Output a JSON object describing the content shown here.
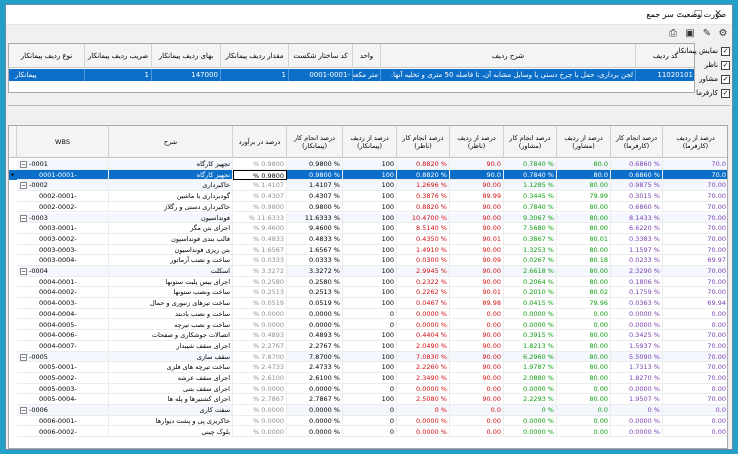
{
  "window": {
    "title": "صورت وضعیت سر جمع"
  },
  "side_options": [
    {
      "label": "نمایش پیمانکار",
      "checked": true
    },
    {
      "label": "ناظر",
      "checked": true
    },
    {
      "label": "مشاور",
      "checked": true
    },
    {
      "label": "کارفرما",
      "checked": true
    }
  ],
  "top_table": {
    "headers": [
      "کد ردیف",
      "شرح ردیف",
      "واحد",
      "کد ساختار شکست",
      "مقدار ردیف پیمانکار",
      "بهای ردیف پیمانکار",
      "ضریب ردیف پیمانکار",
      "نوع ردیف پیمانکار"
    ],
    "row": [
      "11020101",
      "لجن برداری، حمل با چرخ دستی یا وسایل مشابه آن، تا فاصله 50 متری و تخلیه آنها.",
      "متر مکعب",
      "0001-0001-",
      "1",
      "147000",
      "1",
      "پیمانکار"
    ]
  },
  "grid": {
    "headers": [
      "WBS",
      "شرح",
      "درصد در برآورد",
      "درصد انجام کار (پیمانکار)",
      "درصد از ردیف (پیمانکار)",
      "درصد انجام کار (ناظر)",
      "درصد از ردیف (ناظر)",
      "درصد انجام کار (مشاور)",
      "درصد از ردیف (مشاور)",
      "درصد انجام کار (کارفرما)",
      "درصد از ردیف (کارفرما)"
    ],
    "rows": [
      {
        "wbs": "-0001",
        "desc": "تجهیز کارگاه",
        "est": "% 0.9800",
        "pw": "0.9800 %",
        "pr": "100",
        "nw": "0.8820 %",
        "nr": "90.0",
        "mw": "0.7840 %",
        "mr": "80.0",
        "kw": "0.6860 %",
        "kr": "70.0",
        "level": 0,
        "exp": true
      },
      {
        "wbs": "0001-0001-",
        "desc": "تجهیز کارگاه",
        "est": "% 0.9800",
        "pw": "0.9800 %",
        "pr": "100",
        "nw": "0.8820 %",
        "nr": "90.0",
        "mw": "0.7840 %",
        "mr": "80.0",
        "kw": "0.6860 %",
        "kr": "70.0",
        "level": 1,
        "sel": true
      },
      {
        "wbs": "-0002",
        "desc": "خاکبرداری",
        "est": "% 1.4107",
        "pw": "1.4107 %",
        "pr": "100",
        "nw": "1.2696 %",
        "nr": "90.00",
        "mw": "1.1285 %",
        "mr": "80.00",
        "kw": "0.9875 %",
        "kr": "70.00",
        "level": 0,
        "exp": true
      },
      {
        "wbs": "0002-0001-",
        "desc": "گودبرداری با ماشین",
        "est": "% 0.4307",
        "pw": "0.4307 %",
        "pr": "100",
        "nw": "0.3876 %",
        "nr": "89.99",
        "mw": "0.3445 %",
        "mr": "79.99",
        "kw": "0.3015 %",
        "kr": "70.00",
        "level": 1
      },
      {
        "wbs": "0002-0002-",
        "desc": "خاکبرداری دستی و رگلاژ",
        "est": "% 0.9800",
        "pw": "0.9800 %",
        "pr": "100",
        "nw": "0.8820 %",
        "nr": "90.00",
        "mw": "0.7840 %",
        "mr": "80.00",
        "kw": "0.6860 %",
        "kr": "70.00",
        "level": 1
      },
      {
        "wbs": "-0003",
        "desc": "فونداسیون",
        "est": "% 11.6333",
        "pw": "11.6333 %",
        "pr": "100",
        "nw": "10.4700 %",
        "nr": "90.00",
        "mw": "9.3067 %",
        "mr": "80.00",
        "kw": "8.1433 %",
        "kr": "70.00",
        "level": 0,
        "exp": true
      },
      {
        "wbs": "0003-0001-",
        "desc": "اجرای بتن مگر",
        "est": "% 9.4600",
        "pw": "9.4600 %",
        "pr": "100",
        "nw": "8.5140 %",
        "nr": "90.00",
        "mw": "7.5680 %",
        "mr": "80.00",
        "kw": "6.6220 %",
        "kr": "70.00",
        "level": 1
      },
      {
        "wbs": "0003-0002-",
        "desc": "قالب بندی فونداسیون",
        "est": "% 0.4833",
        "pw": "0.4833 %",
        "pr": "100",
        "nw": "0.4350 %",
        "nr": "90.01",
        "mw": "0.3867 %",
        "mr": "80.01",
        "kw": "0.3383 %",
        "kr": "70.00",
        "level": 1
      },
      {
        "wbs": "0003-0003-",
        "desc": "بتن ریزی فونداسیون",
        "est": "% 1.6567",
        "pw": "1.6567 %",
        "pr": "100",
        "nw": "1.4910 %",
        "nr": "90.00",
        "mw": "1.3253 %",
        "mr": "80.00",
        "kw": "1.1597 %",
        "kr": "70.00",
        "level": 1
      },
      {
        "wbs": "0003-0004-",
        "desc": "ساخت و نصب آرماتور",
        "est": "% 0.0333",
        "pw": "0.0333 %",
        "pr": "100",
        "nw": "0.0300 %",
        "nr": "90.09",
        "mw": "0.0267 %",
        "mr": "80.18",
        "kw": "0.0233 %",
        "kr": "69.97",
        "level": 1
      },
      {
        "wbs": "-0004",
        "desc": "اسکلت",
        "est": "% 3.3272",
        "pw": "3.3272 %",
        "pr": "100",
        "nw": "2.9945 %",
        "nr": "90.00",
        "mw": "2.6618 %",
        "mr": "80.00",
        "kw": "2.3290 %",
        "kr": "70.00",
        "level": 0,
        "exp": true
      },
      {
        "wbs": "0004-0001-",
        "desc": "اجرای بیس پلیت ستونها",
        "est": "% 0.2580",
        "pw": "0.2580 %",
        "pr": "100",
        "nw": "0.2322 %",
        "nr": "90.00",
        "mw": "0.2064 %",
        "mr": "80.00",
        "kw": "0.1806 %",
        "kr": "70.00",
        "level": 1
      },
      {
        "wbs": "0004-0002-",
        "desc": "ساخت ونصب ستونها",
        "est": "% 0.2513",
        "pw": "0.2513 %",
        "pr": "100",
        "nw": "0.2262 %",
        "nr": "90.01",
        "mw": "0.2010 %",
        "mr": "80.02",
        "kw": "0.1759 %",
        "kr": "70.00",
        "level": 1
      },
      {
        "wbs": "0004-0003-",
        "desc": "ساخت تیرهای زنبوری و حمال",
        "est": "% 0.0519",
        "pw": "0.0519 %",
        "pr": "100",
        "nw": "0.0467 %",
        "nr": "89.98",
        "mw": "0.0415 %",
        "mr": "79.96",
        "kw": "0.0363 %",
        "kr": "69.94",
        "level": 1
      },
      {
        "wbs": "0004-0004-",
        "desc": "ساخت و نصب بادبند",
        "est": "% 0.0000",
        "pw": "0.0000 %",
        "pr": "0",
        "nw": "0.0000 %",
        "nr": "0.00",
        "mw": "0.0000 %",
        "mr": "0.00",
        "kw": "0.0000 %",
        "kr": "0.00",
        "level": 1
      },
      {
        "wbs": "0004-0005-",
        "desc": "ساخت و نصب تیرچه",
        "est": "% 0.0000",
        "pw": "0.0000 %",
        "pr": "0",
        "nw": "0.0000 %",
        "nr": "0.00",
        "mw": "0.0000 %",
        "mr": "0.00",
        "kw": "0.0000 %",
        "kr": "0.00",
        "level": 1
      },
      {
        "wbs": "0004-0006-",
        "desc": "اتصالات جوشکاری و صفحات",
        "est": "% 0.4893",
        "pw": "0.4893 %",
        "pr": "100",
        "nw": "0.4404 %",
        "nr": "90.00",
        "mw": "0.3915 %",
        "mr": "80.00",
        "kw": "0.3425 %",
        "kr": "70.00",
        "level": 1
      },
      {
        "wbs": "0004-0007-",
        "desc": "اجرای سقف شیبدار",
        "est": "% 2.2767",
        "pw": "2.2767 %",
        "pr": "100",
        "nw": "2.0490 %",
        "nr": "90.00",
        "mw": "1.8213 %",
        "mr": "80.00",
        "kw": "1.5937 %",
        "kr": "70.00",
        "level": 1
      },
      {
        "wbs": "-0005",
        "desc": "سقف سازی",
        "est": "% 7.8700",
        "pw": "7.8700 %",
        "pr": "100",
        "nw": "7.0830 %",
        "nr": "90.00",
        "mw": "6.2960 %",
        "mr": "80.00",
        "kw": "5.5090 %",
        "kr": "70.00",
        "level": 0,
        "exp": true
      },
      {
        "wbs": "0005-0001-",
        "desc": "ساخت تیرچه های فلزی",
        "est": "% 2.4733",
        "pw": "2.4733 %",
        "pr": "100",
        "nw": "2.2260 %",
        "nr": "90.00",
        "mw": "1.9787 %",
        "mr": "80.00",
        "kw": "1.7313 %",
        "kr": "70.00",
        "level": 1
      },
      {
        "wbs": "0005-0002-",
        "desc": "اجرای سقف عرشه",
        "est": "% 2.6100",
        "pw": "2.6100 %",
        "pr": "100",
        "nw": "2.3490 %",
        "nr": "90.00",
        "mw": "2.0880 %",
        "mr": "80.00",
        "kw": "1.8270 %",
        "kr": "70.00",
        "level": 1
      },
      {
        "wbs": "0005-0003-",
        "desc": "اجرای سقف بتنی",
        "est": "% 0.0000",
        "pw": "0.0000 %",
        "pr": "0",
        "nw": "0.0000 %",
        "nr": "0.00",
        "mw": "0.0000 %",
        "mr": "0.00",
        "kw": "0.0000 %",
        "kr": "0.00",
        "level": 1
      },
      {
        "wbs": "0005-0004-",
        "desc": "اجرای کشتیرها و پله ها",
        "est": "% 2.7867",
        "pw": "2.7867 %",
        "pr": "100",
        "nw": "2.5080 %",
        "nr": "90.00",
        "mw": "2.2293 %",
        "mr": "80.00",
        "kw": "1.9507 %",
        "kr": "70.00",
        "level": 1
      },
      {
        "wbs": "-0006",
        "desc": "سفت کاری",
        "est": "% 0.0000",
        "pw": "0.0000 %",
        "pr": "0",
        "nw": "0 %",
        "nr": "0.0",
        "mw": "0 %",
        "mr": "0.0",
        "kw": "0 %",
        "kr": "0.0",
        "level": 0,
        "exp": true
      },
      {
        "wbs": "0006-0001-",
        "desc": "خاکریزی پی و پشت دیوارها",
        "est": "% 0.0000",
        "pw": "0.0000 %",
        "pr": "0",
        "nw": "0.0000 %",
        "nr": "0.00",
        "mw": "0.0000 %",
        "mr": "0.00",
        "kw": "0.0000 %",
        "kr": "0.00",
        "level": 1
      },
      {
        "wbs": "0006-0002-",
        "desc": "بلوک چینی",
        "est": "% 0.0000",
        "pw": "0.0000 %",
        "pr": "0",
        "nw": "0.0000 %",
        "nr": "0.00",
        "mw": "0.0000 %",
        "mr": "0.00",
        "kw": "0.0000 %",
        "kr": "0.00",
        "level": 1
      }
    ]
  }
}
